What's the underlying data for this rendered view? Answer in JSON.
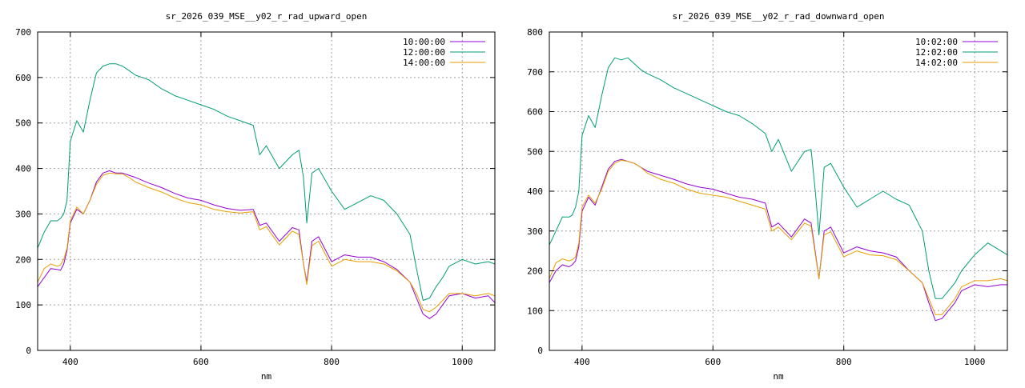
{
  "chart_data": [
    {
      "type": "line",
      "title": "sr_2026_039_MSE__y02_r_rad_upward_open",
      "xlabel": "nm",
      "ylabel": "",
      "xlim": [
        350,
        1050
      ],
      "ylim": [
        0,
        700
      ],
      "xticks": [
        400,
        600,
        800,
        1000
      ],
      "yticks": [
        0,
        100,
        200,
        300,
        400,
        500,
        600,
        700
      ],
      "grid": true,
      "legend_position": "top-right",
      "series": [
        {
          "name": "10:00:00",
          "color": "#9400d3",
          "x": [
            350,
            360,
            370,
            380,
            385,
            390,
            395,
            400,
            410,
            420,
            430,
            440,
            450,
            460,
            470,
            480,
            490,
            500,
            520,
            540,
            560,
            580,
            600,
            620,
            640,
            660,
            680,
            690,
            700,
            720,
            740,
            750,
            757,
            762,
            770,
            780,
            800,
            820,
            840,
            860,
            880,
            900,
            920,
            930,
            940,
            950,
            960,
            970,
            980,
            1000,
            1020,
            1040,
            1050
          ],
          "y": [
            140,
            160,
            180,
            178,
            176,
            190,
            220,
            280,
            310,
            300,
            330,
            370,
            390,
            395,
            390,
            390,
            385,
            380,
            368,
            358,
            345,
            335,
            330,
            320,
            312,
            308,
            310,
            275,
            280,
            240,
            270,
            265,
            190,
            150,
            240,
            250,
            195,
            210,
            205,
            205,
            195,
            178,
            150,
            115,
            80,
            70,
            80,
            100,
            120,
            125,
            115,
            120,
            105
          ]
        },
        {
          "name": "12:00:00",
          "color": "#009e73",
          "x": [
            350,
            360,
            370,
            380,
            385,
            390,
            395,
            400,
            410,
            420,
            430,
            440,
            450,
            460,
            470,
            480,
            490,
            500,
            520,
            540,
            560,
            580,
            600,
            620,
            640,
            660,
            680,
            690,
            700,
            720,
            740,
            750,
            757,
            762,
            770,
            780,
            800,
            820,
            840,
            860,
            880,
            900,
            920,
            930,
            940,
            950,
            960,
            970,
            980,
            1000,
            1020,
            1040,
            1050
          ],
          "y": [
            225,
            260,
            285,
            285,
            290,
            300,
            330,
            460,
            505,
            480,
            550,
            610,
            625,
            630,
            630,
            625,
            615,
            605,
            595,
            575,
            560,
            550,
            540,
            530,
            515,
            505,
            495,
            430,
            450,
            400,
            430,
            440,
            380,
            280,
            390,
            400,
            350,
            310,
            325,
            340,
            330,
            300,
            255,
            180,
            110,
            115,
            140,
            160,
            185,
            200,
            190,
            195,
            190
          ]
        },
        {
          "name": "14:00:00",
          "color": "#e69f00",
          "x": [
            350,
            360,
            370,
            380,
            385,
            390,
            395,
            400,
            410,
            420,
            430,
            440,
            450,
            460,
            470,
            480,
            490,
            500,
            520,
            540,
            560,
            580,
            600,
            620,
            640,
            660,
            680,
            690,
            700,
            720,
            740,
            750,
            757,
            762,
            770,
            780,
            800,
            820,
            840,
            860,
            880,
            900,
            920,
            930,
            940,
            950,
            960,
            970,
            980,
            1000,
            1020,
            1040,
            1050
          ],
          "y": [
            150,
            180,
            190,
            185,
            188,
            200,
            225,
            285,
            315,
            300,
            330,
            365,
            385,
            390,
            388,
            388,
            380,
            370,
            358,
            348,
            335,
            325,
            320,
            310,
            305,
            302,
            305,
            265,
            272,
            232,
            262,
            255,
            190,
            145,
            230,
            240,
            185,
            200,
            195,
            195,
            190,
            175,
            150,
            125,
            90,
            85,
            95,
            110,
            125,
            125,
            120,
            125,
            120
          ]
        }
      ]
    },
    {
      "type": "line",
      "title": "sr_2026_039_MSE__y02_r_rad_downward_open",
      "xlabel": "nm",
      "ylabel": "",
      "xlim": [
        350,
        1050
      ],
      "ylim": [
        0,
        800
      ],
      "xticks": [
        400,
        600,
        800,
        1000
      ],
      "yticks": [
        0,
        100,
        200,
        300,
        400,
        500,
        600,
        700,
        800
      ],
      "grid": true,
      "legend_position": "top-right",
      "series": [
        {
          "name": "10:02:00",
          "color": "#9400d3",
          "x": [
            350,
            360,
            370,
            380,
            385,
            390,
            395,
            400,
            410,
            420,
            430,
            440,
            450,
            460,
            470,
            480,
            490,
            500,
            520,
            540,
            560,
            580,
            600,
            620,
            640,
            660,
            680,
            690,
            700,
            720,
            740,
            750,
            757,
            762,
            770,
            780,
            800,
            820,
            840,
            860,
            880,
            900,
            920,
            930,
            940,
            950,
            960,
            970,
            980,
            1000,
            1020,
            1040,
            1050
          ],
          "y": [
            170,
            200,
            215,
            210,
            215,
            225,
            260,
            350,
            385,
            365,
            410,
            455,
            475,
            480,
            475,
            470,
            460,
            450,
            440,
            430,
            418,
            410,
            405,
            395,
            385,
            380,
            370,
            310,
            320,
            285,
            330,
            320,
            240,
            180,
            300,
            310,
            245,
            260,
            250,
            245,
            235,
            200,
            170,
            120,
            75,
            80,
            100,
            120,
            150,
            165,
            160,
            165,
            165
          ]
        },
        {
          "name": "12:02:00",
          "color": "#009e73",
          "x": [
            350,
            360,
            370,
            380,
            385,
            390,
            395,
            400,
            410,
            420,
            430,
            440,
            450,
            460,
            470,
            480,
            490,
            500,
            520,
            540,
            560,
            580,
            600,
            620,
            640,
            660,
            680,
            690,
            700,
            720,
            740,
            750,
            757,
            762,
            770,
            780,
            800,
            820,
            840,
            860,
            880,
            900,
            920,
            930,
            940,
            950,
            960,
            970,
            980,
            1000,
            1020,
            1040,
            1050
          ],
          "y": [
            265,
            300,
            335,
            335,
            340,
            360,
            400,
            540,
            590,
            560,
            640,
            710,
            735,
            730,
            735,
            720,
            705,
            695,
            680,
            660,
            645,
            630,
            615,
            600,
            590,
            570,
            545,
            500,
            530,
            450,
            500,
            505,
            390,
            290,
            460,
            470,
            410,
            360,
            380,
            400,
            380,
            365,
            300,
            200,
            130,
            130,
            150,
            170,
            200,
            240,
            270,
            250,
            240
          ]
        },
        {
          "name": "14:02:00",
          "color": "#e69f00",
          "x": [
            350,
            360,
            370,
            380,
            385,
            390,
            395,
            400,
            410,
            420,
            430,
            440,
            450,
            460,
            470,
            480,
            490,
            500,
            520,
            540,
            560,
            580,
            600,
            620,
            640,
            660,
            680,
            690,
            700,
            720,
            740,
            750,
            757,
            762,
            770,
            780,
            800,
            820,
            840,
            860,
            880,
            900,
            920,
            930,
            940,
            950,
            960,
            970,
            980,
            1000,
            1020,
            1040,
            1050
          ],
          "y": [
            180,
            220,
            230,
            225,
            228,
            235,
            270,
            360,
            390,
            370,
            405,
            450,
            470,
            478,
            475,
            470,
            460,
            445,
            430,
            420,
            405,
            395,
            390,
            385,
            375,
            365,
            355,
            300,
            310,
            278,
            320,
            312,
            235,
            180,
            290,
            298,
            235,
            250,
            240,
            238,
            228,
            200,
            170,
            130,
            90,
            90,
            110,
            130,
            160,
            175,
            175,
            180,
            175
          ]
        }
      ]
    }
  ]
}
